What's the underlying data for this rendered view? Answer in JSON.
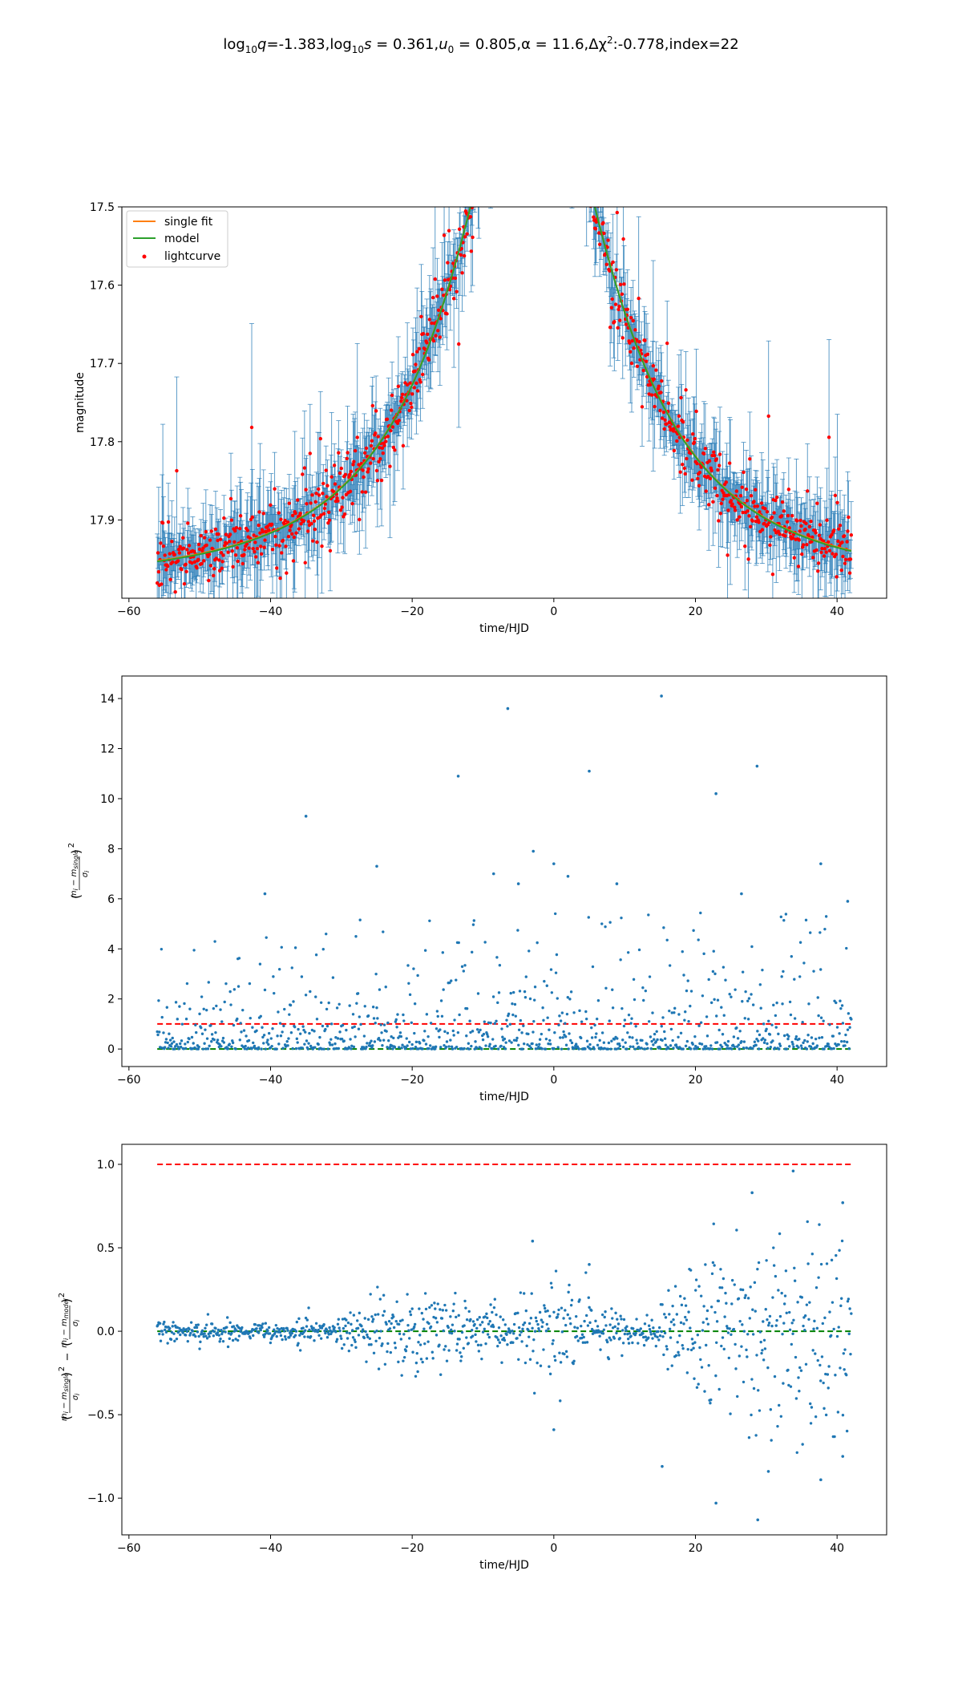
{
  "figure": {
    "title": {
      "log_q_label": "log",
      "log_sub": "10",
      "q_symbol": "q",
      "q_value": "=-1.383,",
      "s_symbol": "s",
      "s_value": " = 0.361,",
      "u0_symbol": "u",
      "u0_sub": "0",
      "u0_value": " = 0.805,",
      "alpha_text": "α = 11.6,",
      "dchi_text": "Δχ",
      "dchi_sup": "2",
      "dchi_value": ":-0.778,index=22"
    }
  },
  "chart_data": [
    {
      "type": "scatter",
      "panel": "lightcurve",
      "xlabel": "time/HJD",
      "ylabel": "magnitude",
      "xlim": [
        -61.0,
        47.0
      ],
      "ylim": [
        17.5,
        18.0
      ],
      "y_inverted": true,
      "xticks": [
        -60,
        -40,
        -20,
        0,
        20,
        40
      ],
      "xtick_labels": [
        "−60",
        "−40",
        "−20",
        "0",
        "20",
        "40"
      ],
      "yticks": [
        17.5,
        17.6,
        17.7,
        17.8,
        17.9
      ],
      "ytick_labels": [
        "17.5",
        "17.6",
        "17.7",
        "17.8",
        "17.9"
      ],
      "legend": {
        "position": "top-left",
        "entries": [
          "single fit",
          "model",
          "lightcurve"
        ]
      },
      "series": [
        {
          "name": "single fit",
          "kind": "line",
          "color": "#ff7f0e",
          "t0": -3.0,
          "tE": 25.0,
          "u0": 0.32,
          "base_mag": 17.975,
          "blend": 0.43
        },
        {
          "name": "model",
          "kind": "line",
          "color": "#2ca02c",
          "t0": -3.0,
          "tE": 25.0,
          "u0": 0.32,
          "base_mag": 17.975,
          "blend": 0.43
        },
        {
          "name": "lightcurve",
          "kind": "errorbar-scatter",
          "color": "#ff0000",
          "errorbar_color": "#1f77b4",
          "n_points": 1000,
          "t_start": -56.0,
          "t_end": 42.0
        }
      ]
    },
    {
      "type": "scatter",
      "panel": "chi2-single",
      "xlabel": "time/HJD",
      "ylabel": "(m_i − m_single)² / σ_i",
      "xlim": [
        -61.0,
        47.0
      ],
      "ylim": [
        -0.7,
        14.9
      ],
      "xticks": [
        -60,
        -40,
        -20,
        0,
        20,
        40
      ],
      "xtick_labels": [
        "−60",
        "−40",
        "−20",
        "0",
        "20",
        "40"
      ],
      "yticks": [
        0,
        2,
        4,
        6,
        8,
        10,
        12,
        14
      ],
      "ytick_labels": [
        "0",
        "2",
        "4",
        "6",
        "8",
        "10",
        "12",
        "14"
      ],
      "hlines": [
        {
          "y": 1.0,
          "color": "#ff0000",
          "style": "dashed"
        },
        {
          "y": 0.0,
          "color": "#008000",
          "style": "dashed"
        }
      ],
      "highlights": [
        {
          "x": 15.2,
          "y": 14.1
        },
        {
          "x": -6.5,
          "y": 13.6
        },
        {
          "x": 28.7,
          "y": 11.3
        },
        {
          "x": 5.0,
          "y": 11.1
        },
        {
          "x": -13.5,
          "y": 10.9
        },
        {
          "x": 22.9,
          "y": 10.2
        },
        {
          "x": -35.0,
          "y": 9.3
        },
        {
          "x": -2.9,
          "y": 7.9
        },
        {
          "x": 37.7,
          "y": 7.4
        },
        {
          "x": -25.0,
          "y": 7.3
        },
        {
          "x": 0.0,
          "y": 7.4
        },
        {
          "x": -8.5,
          "y": 7.0
        },
        {
          "x": -40.8,
          "y": 6.2
        },
        {
          "x": 26.5,
          "y": 6.2
        },
        {
          "x": 41.5,
          "y": 5.9
        },
        {
          "x": 8.9,
          "y": 6.6
        },
        {
          "x": -5.0,
          "y": 6.6
        },
        {
          "x": 2.0,
          "y": 6.9
        }
      ],
      "series": [
        {
          "kind": "scatter",
          "color": "#1f77b4",
          "n_points": 1000
        }
      ]
    },
    {
      "type": "scatter",
      "panel": "chi2-difference",
      "xlabel": "time/HJD",
      "ylabel": "(m_i − m_single)² / σ_i − (m_i − m_model)² / σ_i",
      "xlim": [
        -61.0,
        47.0
      ],
      "ylim": [
        -1.22,
        1.12
      ],
      "xticks": [
        -60,
        -40,
        -20,
        0,
        20,
        40
      ],
      "xtick_labels": [
        "−60",
        "−40",
        "−20",
        "0",
        "20",
        "40"
      ],
      "yticks": [
        -1.0,
        -0.5,
        0.0,
        0.5,
        1.0
      ],
      "ytick_labels": [
        "−1.0",
        "−0.5",
        "0.0",
        "0.5",
        "1.0"
      ],
      "hlines": [
        {
          "y": 1.0,
          "color": "#ff0000",
          "style": "dashed"
        },
        {
          "y": 0.0,
          "color": "#008000",
          "style": "dashed"
        }
      ],
      "highlights": [
        {
          "x": 28.8,
          "y": -1.13
        },
        {
          "x": 22.9,
          "y": -1.03
        },
        {
          "x": 33.8,
          "y": 0.96
        },
        {
          "x": 28.0,
          "y": 0.83
        },
        {
          "x": 40.8,
          "y": 0.77
        },
        {
          "x": 37.7,
          "y": -0.89
        },
        {
          "x": 30.3,
          "y": -0.84
        },
        {
          "x": 15.3,
          "y": -0.81
        },
        {
          "x": 40.8,
          "y": -0.75
        },
        {
          "x": 0.0,
          "y": -0.59
        },
        {
          "x": -3.0,
          "y": 0.54
        },
        {
          "x": 5.0,
          "y": 0.4
        }
      ],
      "series": [
        {
          "kind": "scatter",
          "color": "#1f77b4",
          "n_points": 1000
        }
      ]
    }
  ]
}
